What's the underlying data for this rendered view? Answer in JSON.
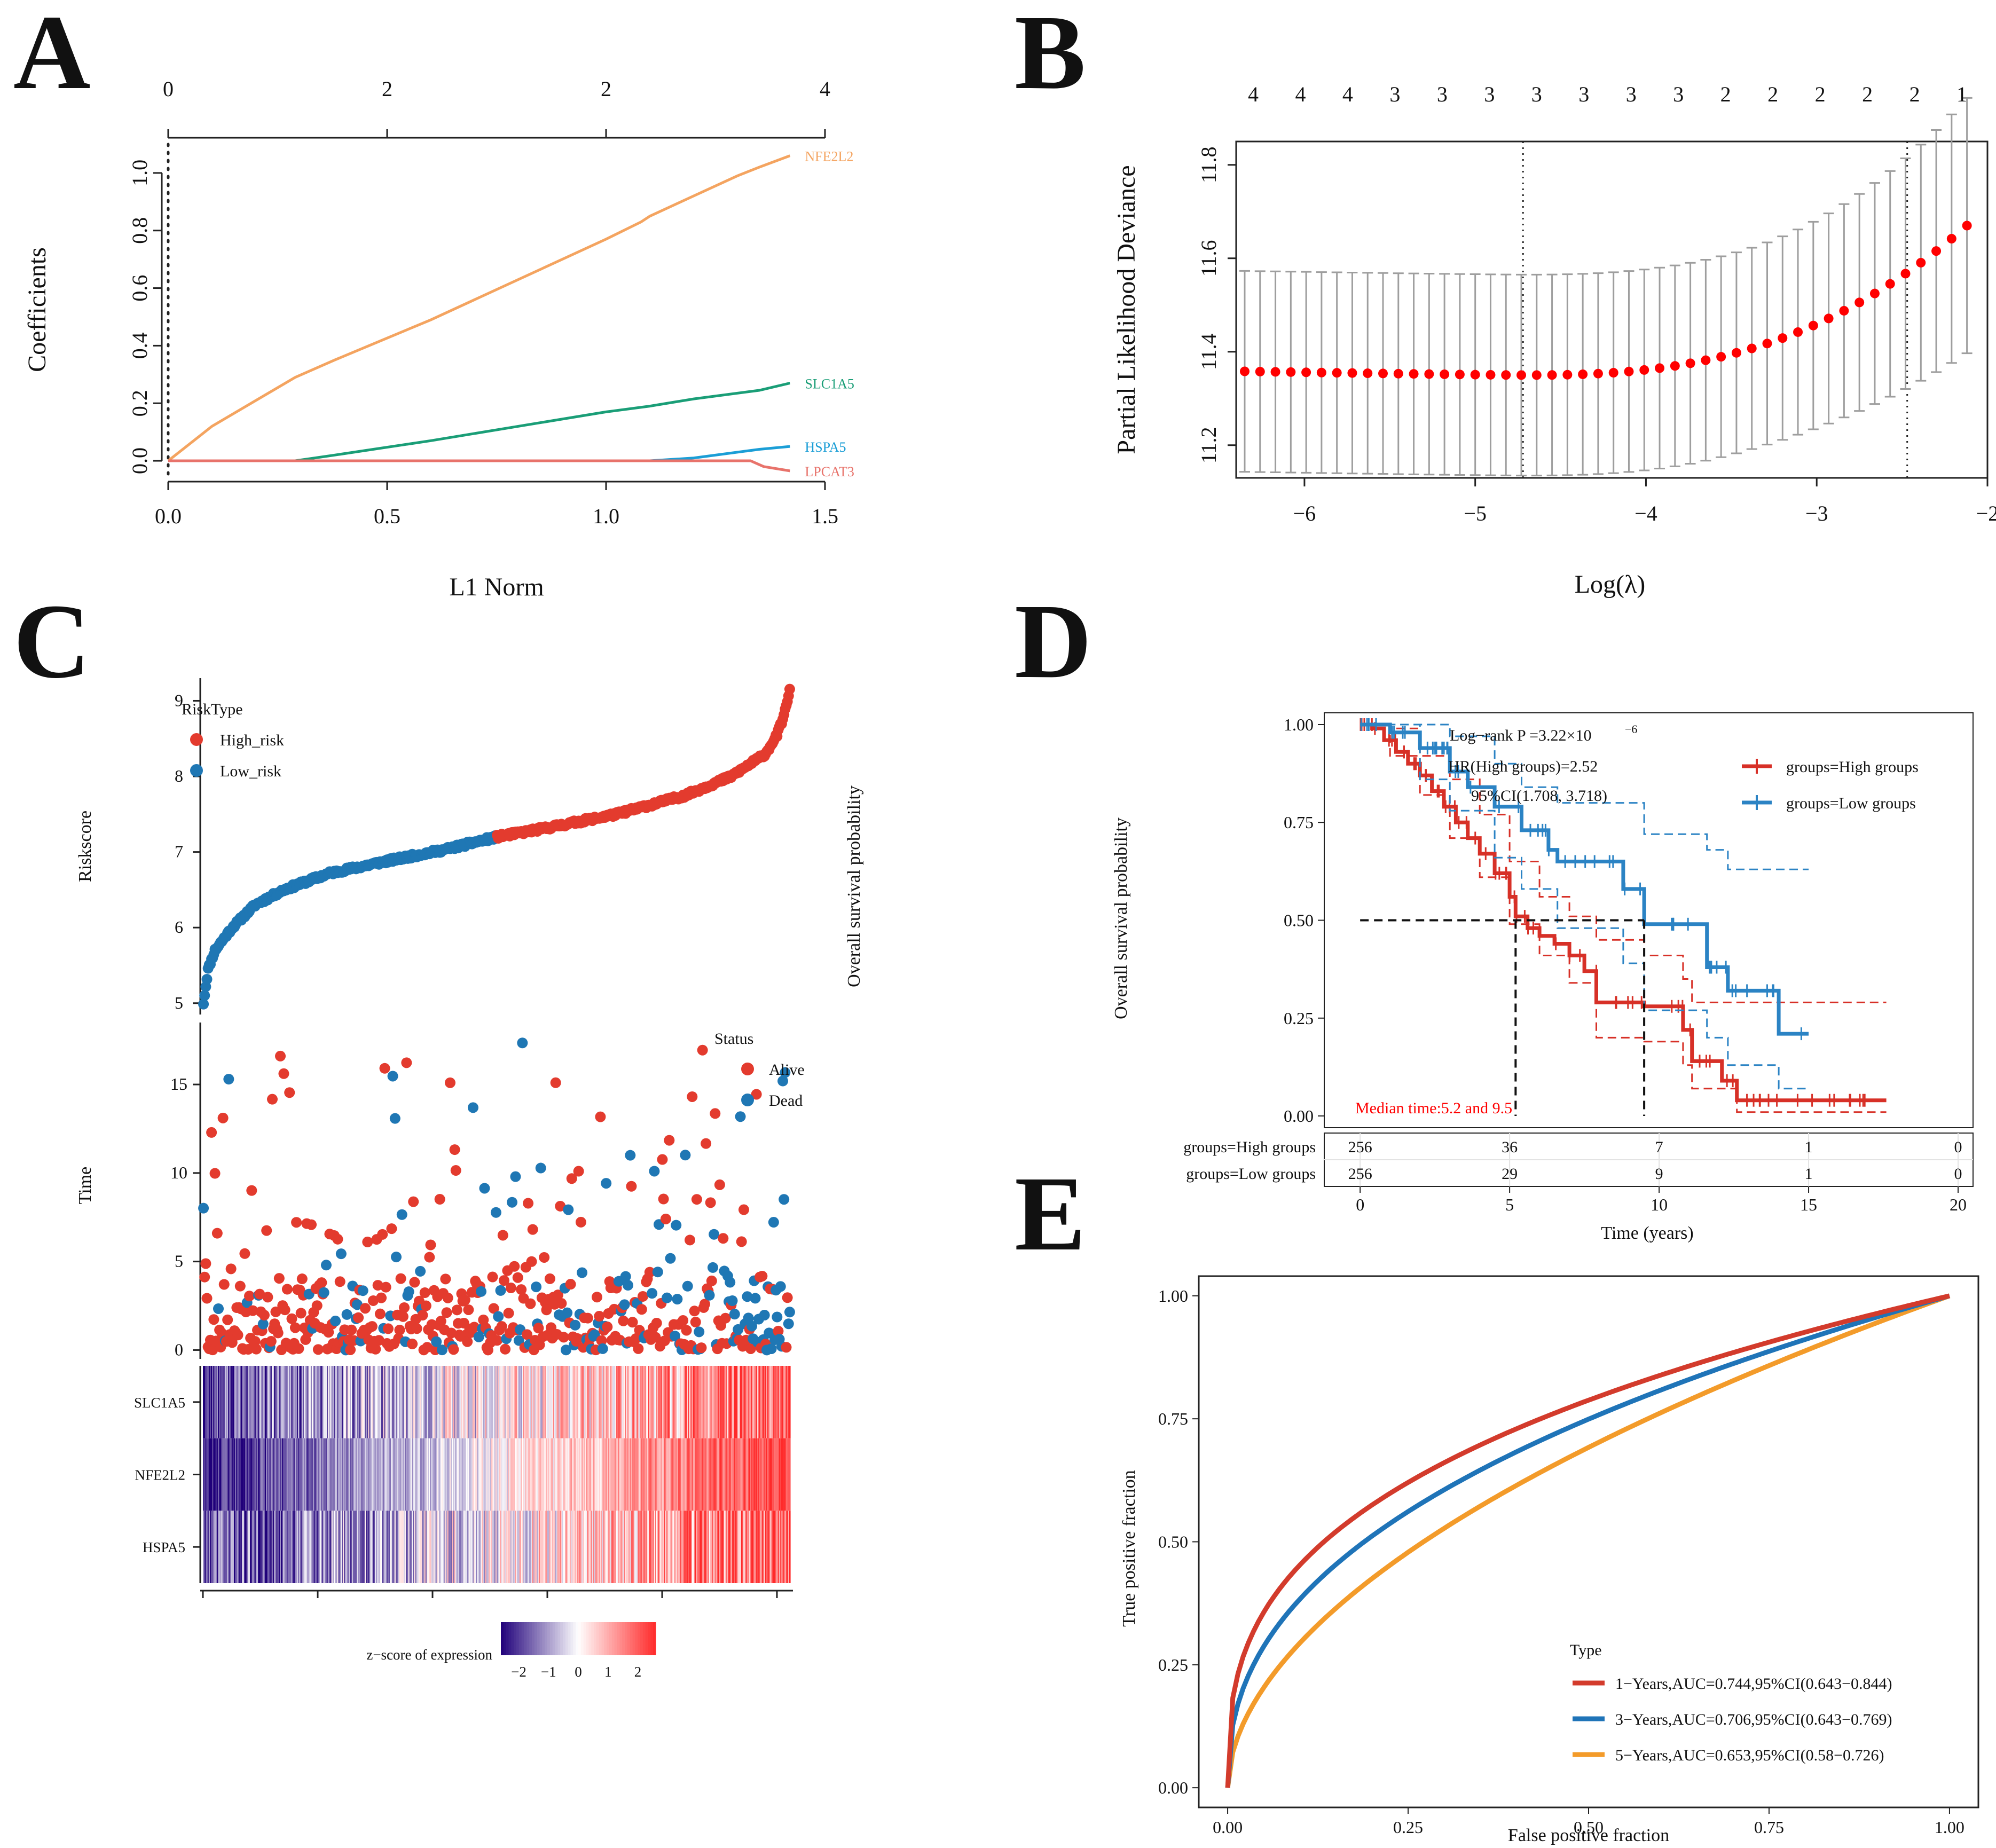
{
  "panels": {
    "A": {
      "letter": "A"
    },
    "B": {
      "letter": "B"
    },
    "C": {
      "letter": "C"
    },
    "D": {
      "letter": "D"
    },
    "E": {
      "letter": "E"
    }
  },
  "chart_data": [
    {
      "id": "A",
      "type": "line",
      "title": "",
      "xlabel": "L1 Norm",
      "ylabel": "Coefficients",
      "xlim": [
        0,
        1.5
      ],
      "ylim": [
        -0.05,
        1.1
      ],
      "x_ticks": [
        "0.0",
        "0.5",
        "1.0",
        "1.5"
      ],
      "y_ticks": [
        "0.0",
        "0.2",
        "0.4",
        "0.6",
        "0.8",
        "1.0"
      ],
      "top_axis_ticks": [
        {
          "x": 0.0,
          "label": "0"
        },
        {
          "x": 0.5,
          "label": "2"
        },
        {
          "x": 1.0,
          "label": "2"
        },
        {
          "x": 1.5,
          "label": "4"
        }
      ],
      "vline_x": 0.0,
      "series": [
        {
          "name": "NFE2L2",
          "color": "#f4a460",
          "points": [
            [
              0,
              0
            ],
            [
              0.1,
              0.12
            ],
            [
              0.29,
              0.29
            ],
            [
              0.38,
              0.35
            ],
            [
              0.6,
              0.49
            ],
            [
              0.8,
              0.63
            ],
            [
              1.0,
              0.77
            ],
            [
              1.08,
              0.83
            ],
            [
              1.1,
              0.85
            ],
            [
              1.2,
              0.92
            ],
            [
              1.3,
              0.99
            ],
            [
              1.35,
              1.02
            ],
            [
              1.42,
              1.06
            ]
          ]
        },
        {
          "name": "SLC1A5",
          "color": "#1a9e77",
          "points": [
            [
              0,
              0
            ],
            [
              0.29,
              0.0
            ],
            [
              0.38,
              0.02
            ],
            [
              0.6,
              0.07
            ],
            [
              0.8,
              0.12
            ],
            [
              1.0,
              0.17
            ],
            [
              1.1,
              0.19
            ],
            [
              1.2,
              0.215
            ],
            [
              1.35,
              0.245
            ],
            [
              1.42,
              0.27
            ]
          ]
        },
        {
          "name": "HSPA5",
          "color": "#1b9ed6",
          "points": [
            [
              0,
              0
            ],
            [
              1.1,
              0.0
            ],
            [
              1.2,
              0.01
            ],
            [
              1.35,
              0.04
            ],
            [
              1.42,
              0.05
            ]
          ]
        },
        {
          "name": "LPCAT3",
          "color": "#e8736b",
          "points": [
            [
              0,
              0
            ],
            [
              1.33,
              0.0
            ],
            [
              1.36,
              -0.02
            ],
            [
              1.42,
              -0.035
            ]
          ]
        }
      ]
    },
    {
      "id": "B",
      "type": "scatter",
      "title": "",
      "xlabel": "Log(λ)",
      "ylabel": "Partial Likelihood Deviance",
      "xlim": [
        -6.4,
        -2.0
      ],
      "ylim": [
        11.13,
        11.85
      ],
      "x_ticks": [
        "−6",
        "−5",
        "−4",
        "−3",
        "−2"
      ],
      "y_ticks": [
        "11.2",
        "11.4",
        "11.6",
        "11.8"
      ],
      "top_counts": [
        "4",
        "4",
        "4",
        "3",
        "3",
        "3",
        "3",
        "3",
        "3",
        "3",
        "2",
        "2",
        "2",
        "2",
        "2",
        "1"
      ],
      "vlines": [
        -4.72,
        -2.47
      ],
      "point_color": "#ff0000",
      "errorbar_color": "#9e9e9e",
      "log_lambda_start": -6.35,
      "log_lambda_end": -2.12,
      "n_points": 48,
      "deviance_min": 11.35,
      "deviance_max": 11.67,
      "se_band": 0.215
    },
    {
      "id": "C-risk",
      "type": "scatter",
      "title": "",
      "xlabel": "",
      "ylabel": "Riskscore",
      "right_label": "Overall survival probability",
      "ylim": [
        4.85,
        9.3
      ],
      "y_ticks": [
        "5",
        "6",
        "7",
        "8",
        "9"
      ],
      "legend_title": "RiskType",
      "legend": [
        {
          "label": "High_risk",
          "color": "#e33b2e"
        },
        {
          "label": "Low_risk",
          "color": "#1f77b4"
        }
      ],
      "n_samples": 512,
      "cutoff_index": 256,
      "curve_points": [
        [
          0,
          5.0
        ],
        [
          4,
          5.45
        ],
        [
          10,
          5.7
        ],
        [
          25,
          6.0
        ],
        [
          45,
          6.3
        ],
        [
          70,
          6.5
        ],
        [
          110,
          6.72
        ],
        [
          160,
          6.88
        ],
        [
          210,
          7.03
        ],
        [
          256,
          7.2
        ],
        [
          300,
          7.32
        ],
        [
          360,
          7.5
        ],
        [
          420,
          7.75
        ],
        [
          460,
          8.0
        ],
        [
          490,
          8.3
        ],
        [
          500,
          8.55
        ],
        [
          506,
          8.8
        ],
        [
          511,
          9.15
        ]
      ]
    },
    {
      "id": "C-time",
      "type": "scatter",
      "title": "",
      "xlabel": "",
      "ylabel": "Time",
      "ylim": [
        -0.5,
        18.5
      ],
      "y_ticks": [
        "0",
        "5",
        "10",
        "15"
      ],
      "legend_title": "Status",
      "legend": [
        {
          "label": "Alive",
          "color": "#e33b2e"
        },
        {
          "label": "Dead",
          "color": "#1f77b4"
        }
      ],
      "n_samples": 512
    },
    {
      "id": "C-heat",
      "type": "heatmap",
      "title": "",
      "rows": [
        "SLC1A5",
        "NFE2L2",
        "HSPA5"
      ],
      "colorbar_label": "z−score of expression",
      "colorbar_ticks": [
        "−2",
        "−1",
        "0",
        "1",
        "2"
      ],
      "colorbar_range": [
        -2.6,
        2.6
      ],
      "low_color": "#20007a",
      "mid_color": "#ffffff",
      "high_color": "#ff2a2a"
    },
    {
      "id": "D",
      "type": "line",
      "title": "",
      "xlabel": "Time (years)",
      "ylabel": "Overall survival probability",
      "xlim": [
        -1.2,
        20.5
      ],
      "ylim": [
        -0.03,
        1.03
      ],
      "x_ticks": [
        "0",
        "5",
        "10",
        "15",
        "20"
      ],
      "y_ticks": [
        "0.00",
        "0.25",
        "0.50",
        "0.75",
        "1.00"
      ],
      "annotations": [
        "Log−rank P =3.22×10",
        "−6",
        "HR(High groups)=2.52",
        "95%CI(1.708, 3.718)"
      ],
      "median_text": "Median time:5.2 and 9.5",
      "medians": [
        5.2,
        9.5
      ],
      "series": [
        {
          "name": "groups=High groups",
          "color": "#d73027",
          "steps": [
            [
              0,
              1.0
            ],
            [
              0.4,
              0.99
            ],
            [
              0.8,
              0.96
            ],
            [
              1.2,
              0.93
            ],
            [
              1.6,
              0.9
            ],
            [
              2.0,
              0.87
            ],
            [
              2.4,
              0.83
            ],
            [
              2.8,
              0.79
            ],
            [
              3.2,
              0.75
            ],
            [
              3.6,
              0.71
            ],
            [
              4.0,
              0.67
            ],
            [
              4.5,
              0.62
            ],
            [
              5.0,
              0.56
            ],
            [
              5.2,
              0.51
            ],
            [
              5.6,
              0.48
            ],
            [
              6.0,
              0.46
            ],
            [
              6.5,
              0.44
            ],
            [
              7.0,
              0.41
            ],
            [
              7.5,
              0.37
            ],
            [
              7.9,
              0.29
            ],
            [
              9.5,
              0.28
            ],
            [
              10.8,
              0.22
            ],
            [
              11.1,
              0.14
            ],
            [
              12.1,
              0.09
            ],
            [
              12.6,
              0.04
            ],
            [
              17.6,
              0.04
            ]
          ],
          "ci_lower": [
            [
              0,
              1.0
            ],
            [
              1.0,
              0.92
            ],
            [
              2.0,
              0.82
            ],
            [
              3.0,
              0.71
            ],
            [
              4.0,
              0.61
            ],
            [
              5.0,
              0.49
            ],
            [
              6.0,
              0.41
            ],
            [
              7.0,
              0.34
            ],
            [
              7.9,
              0.2
            ],
            [
              9.5,
              0.19
            ],
            [
              10.8,
              0.13
            ],
            [
              11.1,
              0.07
            ],
            [
              12.6,
              0.01
            ],
            [
              17.6,
              0.01
            ]
          ],
          "ci_upper": [
            [
              0,
              1.0
            ],
            [
              1.0,
              0.99
            ],
            [
              2.0,
              0.92
            ],
            [
              3.0,
              0.86
            ],
            [
              4.0,
              0.77
            ],
            [
              5.0,
              0.65
            ],
            [
              6.0,
              0.56
            ],
            [
              7.0,
              0.51
            ],
            [
              7.9,
              0.45
            ],
            [
              9.5,
              0.41
            ],
            [
              10.8,
              0.35
            ],
            [
              11.1,
              0.29
            ],
            [
              12.6,
              0.29
            ],
            [
              17.6,
              0.29
            ]
          ]
        },
        {
          "name": "groups=Low groups",
          "color": "#2b83c4",
          "steps": [
            [
              0,
              1.0
            ],
            [
              1.0,
              0.98
            ],
            [
              2.0,
              0.94
            ],
            [
              3.0,
              0.88
            ],
            [
              3.6,
              0.84
            ],
            [
              4.5,
              0.79
            ],
            [
              5.4,
              0.73
            ],
            [
              6.3,
              0.68
            ],
            [
              6.6,
              0.65
            ],
            [
              8.8,
              0.58
            ],
            [
              9.5,
              0.49
            ],
            [
              11.6,
              0.38
            ],
            [
              12.3,
              0.32
            ],
            [
              14.0,
              0.21
            ],
            [
              15.0,
              0.21
            ]
          ],
          "ci_lower": [
            [
              0,
              1.0
            ],
            [
              2.0,
              0.86
            ],
            [
              3.0,
              0.78
            ],
            [
              4.5,
              0.66
            ],
            [
              5.4,
              0.58
            ],
            [
              6.6,
              0.48
            ],
            [
              8.8,
              0.39
            ],
            [
              9.5,
              0.27
            ],
            [
              11.6,
              0.2
            ],
            [
              12.3,
              0.13
            ],
            [
              14.0,
              0.07
            ],
            [
              15.0,
              0.07
            ]
          ],
          "ci_upper": [
            [
              0,
              1.0
            ],
            [
              2.0,
              1.0
            ],
            [
              3.0,
              0.97
            ],
            [
              4.5,
              0.9
            ],
            [
              5.4,
              0.84
            ],
            [
              6.6,
              0.8
            ],
            [
              9.5,
              0.72
            ],
            [
              11.6,
              0.68
            ],
            [
              12.3,
              0.63
            ],
            [
              15.0,
              0.63
            ]
          ]
        }
      ],
      "risk_table": {
        "times": [
          "0",
          "5",
          "10",
          "15",
          "20"
        ],
        "rows": [
          {
            "label": "groups=High groups",
            "counts": [
              "256",
              "36",
              "7",
              "1",
              "0"
            ]
          },
          {
            "label": "groups=Low groups",
            "counts": [
              "256",
              "29",
              "9",
              "1",
              "0"
            ]
          }
        ]
      }
    },
    {
      "id": "E",
      "type": "line",
      "title": "",
      "xlabel": "False positive fraction",
      "ylabel": "True positive fraction",
      "xlim": [
        -0.04,
        1.04
      ],
      "ylim": [
        -0.04,
        1.04
      ],
      "x_ticks": [
        "0.00",
        "0.25",
        "0.50",
        "0.75",
        "1.00"
      ],
      "y_ticks": [
        "0.00",
        "0.25",
        "0.50",
        "0.75",
        "1.00"
      ],
      "legend_title": "Type",
      "series": [
        {
          "name": "1−Years,AUC=0.744,95%CI(0.643−0.844)",
          "color": "#d33b2c",
          "auc": 0.744
        },
        {
          "name": "3−Years,AUC=0.706,95%CI(0.643−0.769)",
          "color": "#1f74b8",
          "auc": 0.706
        },
        {
          "name": "5−Years,AUC=0.653,95%CI(0.58−0.726)",
          "color": "#f39b2a",
          "auc": 0.653
        }
      ]
    }
  ]
}
